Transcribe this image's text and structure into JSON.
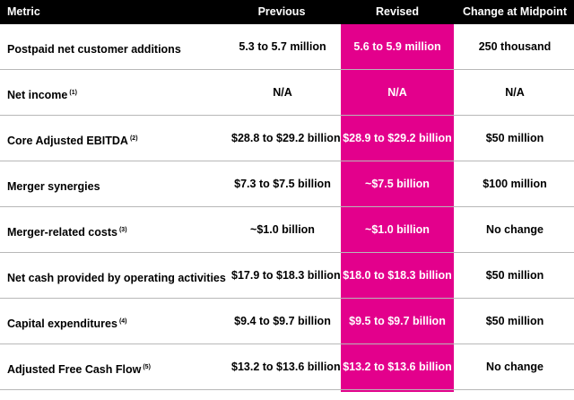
{
  "header": {
    "metric": "Metric",
    "previous": "Previous",
    "revised": "Revised",
    "change": "Change at Midpoint"
  },
  "colors": {
    "header_bg": "#000000",
    "revised_highlight": "#e3008c"
  },
  "rows": [
    {
      "metric": "Postpaid net customer additions",
      "note": "",
      "previous": "5.3 to 5.7 million",
      "revised": "5.6 to 5.9 million",
      "change": "250 thousand"
    },
    {
      "metric": "Net income",
      "note": "(1)",
      "previous": "N/A",
      "revised": "N/A",
      "change": "N/A"
    },
    {
      "metric": "Core Adjusted EBITDA",
      "note": "(2)",
      "previous": "$28.8 to $29.2 billion",
      "revised": "$28.9 to $29.2 billion",
      "change": "$50 million"
    },
    {
      "metric": "Merger synergies",
      "note": "",
      "previous": "$7.3 to $7.5 billion",
      "revised": "~$7.5 billion",
      "change": "$100 million"
    },
    {
      "metric": "Merger-related costs",
      "note": "(3)",
      "previous": "~$1.0 billion",
      "revised": "~$1.0 billion",
      "change": "No change"
    },
    {
      "metric": "Net cash provided by operating activities",
      "note": "",
      "previous": "$17.9 to $18.3 billion",
      "revised": "$18.0 to $18.3 billion",
      "change": "$50 million"
    },
    {
      "metric": "Capital expenditures",
      "note": "(4)",
      "previous": "$9.4 to $9.7 billion",
      "revised": "$9.5 to $9.7 billion",
      "change": "$50 million"
    },
    {
      "metric": "Adjusted Free Cash Flow",
      "note": "(5)",
      "previous": "$13.2 to $13.6 billion",
      "revised": "$13.2 to $13.6 billion",
      "change": "No change"
    }
  ]
}
